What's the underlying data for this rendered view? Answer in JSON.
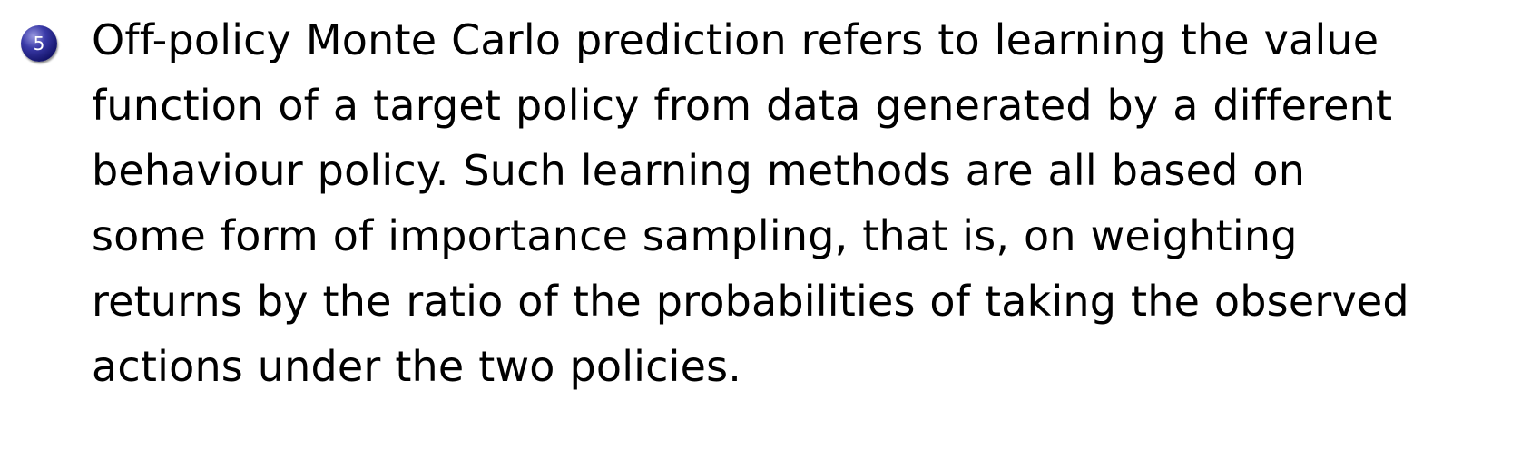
{
  "item": {
    "number": "5",
    "lines": [
      "Off-policy Monte Carlo prediction refers to learning the value",
      "function of a target policy from data generated by a different",
      "behaviour policy. Such learning methods are all based on",
      "some form of importance sampling, that is, on weighting",
      "returns by the ratio of the probabilities of taking the observed",
      "actions under the two policies."
    ]
  }
}
